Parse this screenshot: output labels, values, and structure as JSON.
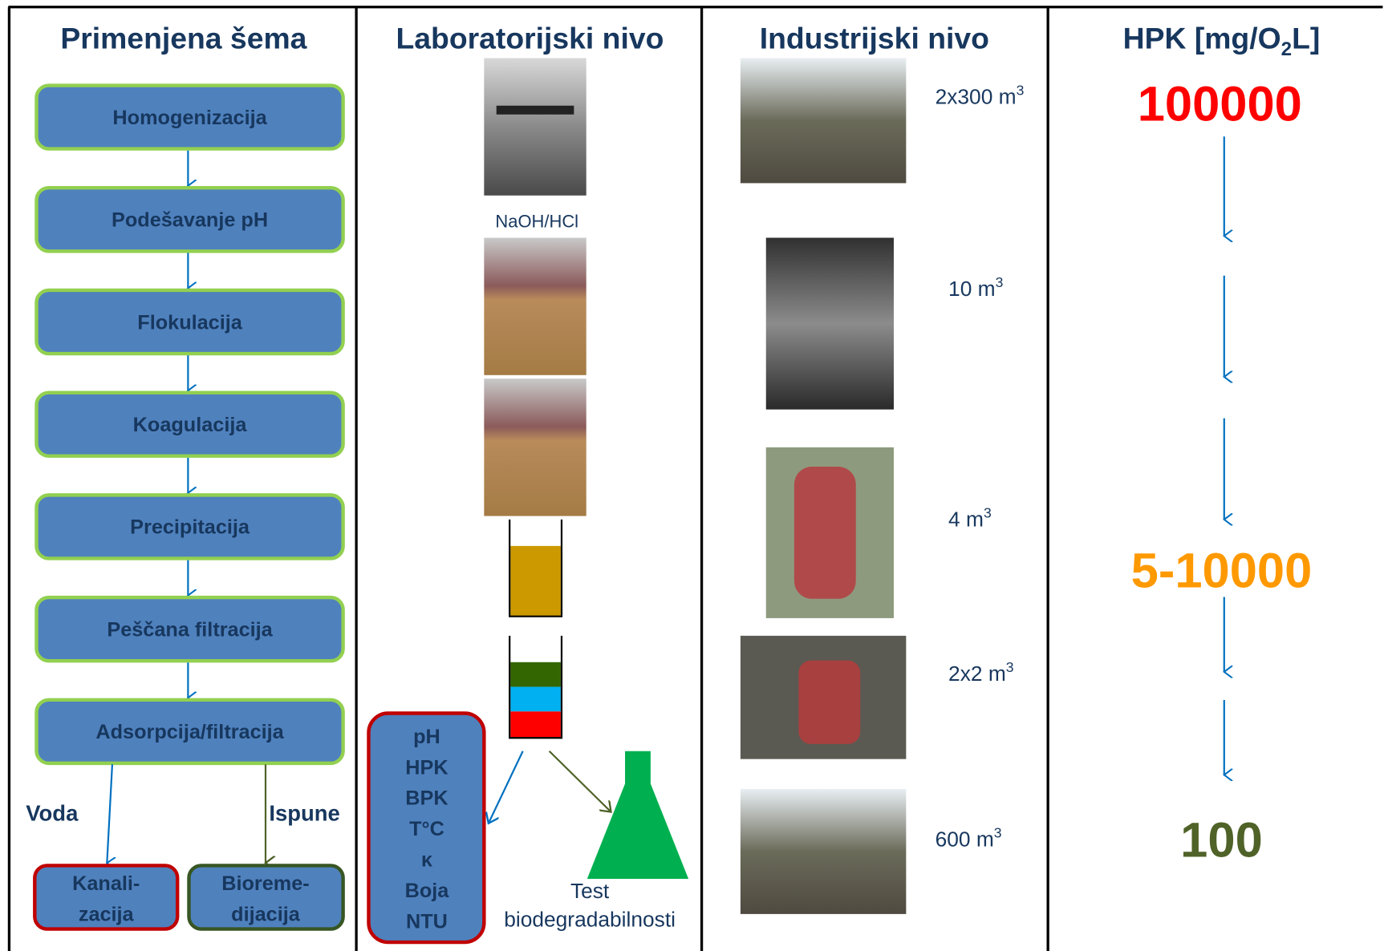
{
  "schema": {
    "title": "Primenjena šema",
    "steps": [
      "Homogenizacija",
      "Podešavanje pH",
      "Flokulacija",
      "Koagulacija",
      "Precipitacija",
      "Peščana filtracija",
      "Adsorpcija/filtracija"
    ],
    "branches": [
      {
        "label": "Voda",
        "target": [
          "Kanali-",
          "zacija"
        ]
      },
      {
        "label": "Ispune",
        "target": [
          "Bioreme-",
          "dijacija"
        ]
      }
    ]
  },
  "laboratory": {
    "title": "Laboratorijski nivo",
    "reagent": "NaOH/HCl",
    "parameters": [
      "pH",
      "HPK",
      "BPK",
      "T°C",
      "κ",
      "Boja",
      "NTU"
    ],
    "test": [
      "Test",
      "biodegradabilnosti"
    ]
  },
  "industrial": {
    "title": "Industrijski nivo",
    "volumes": [
      {
        "text": "2x300 m",
        "sup": "3"
      },
      {
        "text": "10 m",
        "sup": "3"
      },
      {
        "text": "4 m",
        "sup": "3"
      },
      {
        "text": "2x2 m",
        "sup": "3"
      },
      {
        "text": "600 m",
        "sup": "3"
      }
    ]
  },
  "cod": {
    "title": {
      "text": "HPK [mg/O",
      "sub": "2",
      "tail": "L]"
    },
    "levels": [
      "100000",
      "5-10000",
      "100"
    ]
  }
}
